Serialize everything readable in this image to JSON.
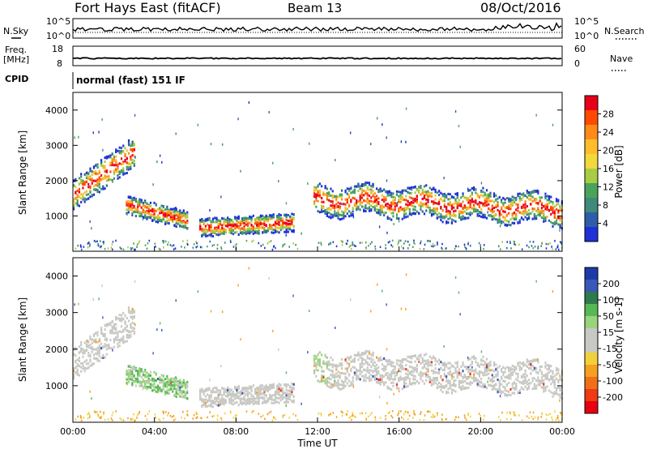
{
  "header": {
    "station": "Fort Hays East (fitACF)",
    "beam": "Beam 13",
    "date": "08/Oct/2016"
  },
  "top_panels": {
    "sky_label": "N.Sky",
    "search_label": "N.Search",
    "noise_ticks": [
      "10^5",
      "10^0"
    ],
    "freq_label": "Freq.",
    "freq_unit": "[MHz]",
    "freq_ticks": [
      "18",
      "8"
    ],
    "nave_label": "Nave",
    "nave_ticks": [
      "60",
      "0"
    ],
    "cpid_label": "CPID",
    "cpid_text": "normal (fast) 151 IF"
  },
  "colorbars": {
    "power": {
      "label": "Power [dB]",
      "ticks": [
        "28",
        "24",
        "20",
        "16",
        "12",
        "8",
        "4"
      ],
      "colors": [
        "#e8001a",
        "#ff4a00",
        "#ff8a1a",
        "#ffbd2a",
        "#f2d83a",
        "#a7cc45",
        "#4aa35a",
        "#3f8a7a",
        "#2f5ea8",
        "#2030d8"
      ]
    },
    "velocity": {
      "label": "Velocity [m s-1]",
      "ticks": [
        "200",
        "100",
        "50",
        "15",
        "-15",
        "-50",
        "-100",
        "-200"
      ],
      "colors": [
        "#1f3aa8",
        "#3b57b8",
        "#2e7a4d",
        "#57b857",
        "#9ad47a",
        "#c8c8c4",
        "#c8c8c4",
        "#f2d03a",
        "#f5a020",
        "#f07018",
        "#ef3a14",
        "#e80010"
      ]
    }
  },
  "chart_data": [
    {
      "type": "heatmap",
      "title": "Power",
      "ylabel": "Slant Range [km]",
      "ylim": [
        0,
        4500
      ],
      "y_ticks": [
        "4000",
        "3000",
        "2000",
        "1000"
      ],
      "x_ticks": [
        "00:00",
        "04:00",
        "08:00",
        "12:00",
        "16:00",
        "20:00",
        "00:00"
      ],
      "xlim_hours": [
        0,
        24
      ],
      "echo_bands": [
        {
          "t_start": 0.0,
          "t_end": 3.0,
          "range_center_start": 1600,
          "range_center_end": 2800
        },
        {
          "t_start": 2.6,
          "t_end": 5.6,
          "range_center_start": 1300,
          "range_center_end": 850
        },
        {
          "t_start": 6.2,
          "t_end": 10.8,
          "range_center_start": 650,
          "range_center_end": 800
        },
        {
          "t_start": 11.8,
          "t_end": 24.0,
          "range_center_start": 1500,
          "range_center_end": 1150
        }
      ]
    },
    {
      "type": "heatmap",
      "title": "Velocity",
      "ylabel": "Slant Range [km]",
      "ylim": [
        0,
        4500
      ],
      "y_ticks": [
        "4000",
        "3000",
        "2000",
        "1000"
      ],
      "x_ticks": [
        "00:00",
        "04:00",
        "08:00",
        "12:00",
        "16:00",
        "20:00",
        "00:00"
      ],
      "xlabel": "Time UT",
      "xlim_hours": [
        0,
        24
      ]
    }
  ]
}
